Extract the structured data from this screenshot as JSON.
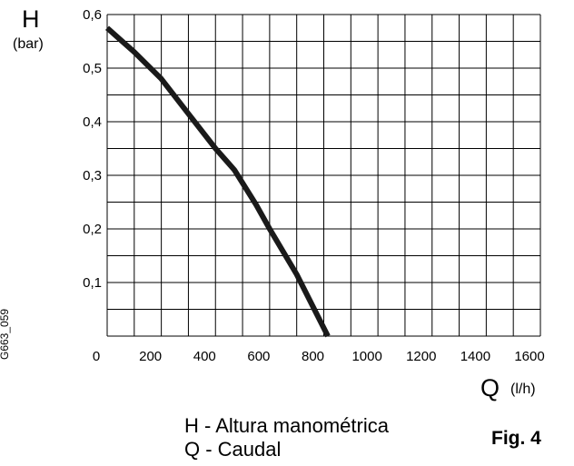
{
  "chart_data": {
    "type": "line",
    "ylabel": "H",
    "yunit": "(bar)",
    "xlabel": "Q",
    "xunit": "(l/h)",
    "xlim": [
      0,
      1600
    ],
    "ylim": [
      0,
      0.6
    ],
    "grid": true,
    "x_ticks": [
      "0",
      "200",
      "400",
      "600",
      "800",
      "1000",
      "1200",
      "1400",
      "1600"
    ],
    "y_ticks": [
      {
        "value": 0.1,
        "label": "0,1"
      },
      {
        "value": 0.2,
        "label": "0,2"
      },
      {
        "value": 0.3,
        "label": "0,3"
      },
      {
        "value": 0.4,
        "label": "0,4"
      },
      {
        "value": 0.5,
        "label": "0,5"
      },
      {
        "value": 0.6,
        "label": "0,6"
      }
    ],
    "series": [
      {
        "color": "#1a1a1a",
        "points": [
          [
            0,
            0.575
          ],
          [
            100,
            0.53
          ],
          [
            200,
            0.48
          ],
          [
            300,
            0.415
          ],
          [
            400,
            0.35
          ],
          [
            470,
            0.31
          ],
          [
            550,
            0.245
          ],
          [
            600,
            0.2
          ],
          [
            700,
            0.115
          ],
          [
            800,
            0.015
          ],
          [
            815,
            0.0
          ]
        ]
      }
    ]
  },
  "legend": {
    "h_line": "H - Altura manométrica",
    "q_line": "Q - Caudal"
  },
  "figure_label": "Fig. 4",
  "figure_code": "G663_059"
}
